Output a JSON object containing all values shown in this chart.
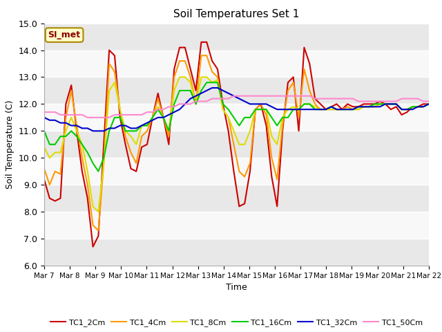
{
  "title": "Soil Temperatures Set 1",
  "xlabel": "Time",
  "ylabel": "Soil Temperature (C)",
  "ylim": [
    6.0,
    15.0
  ],
  "yticks": [
    6.0,
    7.0,
    8.0,
    9.0,
    10.0,
    11.0,
    12.0,
    13.0,
    14.0,
    15.0
  ],
  "annotation": "SI_met",
  "series_colors": [
    "#cc0000",
    "#ff9900",
    "#dddd00",
    "#00cc00",
    "#0000cc",
    "#ff88cc"
  ],
  "series_labels": [
    "TC1_2Cm",
    "TC1_4Cm",
    "TC1_8Cm",
    "TC1_16Cm",
    "TC1_32Cm",
    "TC1_50Cm"
  ],
  "plot_bg": "#f0f0f0",
  "band_light": "#e8e8e8",
  "band_dark": "#d8d8d8",
  "xtick_labels": [
    "Mar 7",
    "Mar 8",
    "Mar 9",
    "Mar 10",
    "Mar 11",
    "Mar 12",
    "Mar 13",
    "Mar 14",
    "Mar 15",
    "Mar 16",
    "Mar 17",
    "Mar 18",
    "Mar 19",
    "Mar 20",
    "Mar 21",
    "Mar 22"
  ],
  "TC1_2Cm": [
    9.2,
    8.5,
    8.4,
    8.5,
    12.0,
    12.7,
    11.0,
    9.5,
    8.5,
    6.7,
    7.1,
    10.5,
    14.0,
    13.8,
    11.5,
    10.5,
    9.6,
    9.5,
    10.4,
    10.5,
    11.5,
    12.4,
    11.5,
    10.5,
    13.3,
    14.1,
    14.1,
    13.3,
    12.5,
    14.3,
    14.3,
    13.6,
    13.3,
    12.0,
    11.0,
    9.5,
    8.2,
    8.3,
    9.5,
    11.8,
    12.0,
    11.2,
    9.3,
    8.2,
    11.0,
    12.8,
    13.0,
    11.0,
    14.1,
    13.5,
    12.2,
    12.0,
    11.8,
    11.9,
    12.0,
    11.8,
    12.0,
    11.9,
    11.9,
    12.0,
    12.0,
    12.0,
    12.1,
    12.0,
    11.8,
    11.9,
    11.6,
    11.7,
    11.9,
    11.9,
    12.0,
    12.0
  ],
  "TC1_4Cm": [
    9.6,
    9.0,
    9.5,
    9.4,
    11.5,
    12.5,
    11.2,
    10.0,
    9.0,
    7.5,
    7.3,
    9.8,
    13.5,
    13.2,
    11.8,
    10.8,
    10.2,
    9.8,
    10.8,
    11.0,
    11.5,
    12.2,
    11.5,
    10.8,
    13.0,
    13.6,
    13.6,
    13.0,
    12.0,
    13.8,
    13.8,
    13.2,
    13.0,
    11.8,
    11.5,
    10.5,
    9.5,
    9.3,
    9.8,
    11.8,
    12.0,
    11.6,
    10.0,
    9.2,
    11.2,
    12.5,
    12.8,
    11.5,
    13.3,
    12.5,
    12.0,
    11.8,
    11.8,
    11.8,
    11.8,
    11.8,
    11.9,
    11.8,
    11.8,
    11.9,
    11.9,
    11.9,
    12.0,
    12.0,
    12.0,
    12.0,
    11.8,
    11.8,
    11.9,
    11.9,
    11.9,
    12.0
  ],
  "TC1_8Cm": [
    10.4,
    10.0,
    10.2,
    10.2,
    11.0,
    11.5,
    11.0,
    10.5,
    9.5,
    8.2,
    8.0,
    9.8,
    12.5,
    12.8,
    11.8,
    11.0,
    10.8,
    10.5,
    11.2,
    11.2,
    11.5,
    11.9,
    11.5,
    11.0,
    12.5,
    13.0,
    13.0,
    12.8,
    12.0,
    13.0,
    13.0,
    12.8,
    12.9,
    11.8,
    11.5,
    11.0,
    10.5,
    10.5,
    11.0,
    11.8,
    11.8,
    11.8,
    10.8,
    10.5,
    11.5,
    11.8,
    11.9,
    11.8,
    12.0,
    12.0,
    11.9,
    11.8,
    11.8,
    11.8,
    11.8,
    11.8,
    11.8,
    11.8,
    11.8,
    11.9,
    11.9,
    11.9,
    12.0,
    12.0,
    12.0,
    12.0,
    11.8,
    11.8,
    11.9,
    11.9,
    11.9,
    12.0
  ],
  "TC1_16Cm": [
    11.0,
    10.5,
    10.5,
    10.8,
    10.8,
    11.0,
    10.8,
    10.5,
    10.2,
    9.8,
    9.5,
    10.0,
    11.0,
    11.5,
    11.5,
    11.0,
    11.0,
    11.0,
    11.2,
    11.2,
    11.5,
    11.8,
    11.5,
    11.0,
    12.0,
    12.5,
    12.5,
    12.5,
    12.0,
    12.5,
    12.8,
    12.8,
    12.8,
    12.0,
    11.8,
    11.5,
    11.2,
    11.5,
    11.5,
    11.8,
    11.8,
    11.8,
    11.5,
    11.2,
    11.5,
    11.5,
    11.8,
    11.8,
    12.0,
    12.0,
    11.8,
    11.8,
    11.8,
    11.9,
    11.8,
    11.8,
    11.8,
    11.8,
    11.9,
    11.9,
    11.9,
    12.0,
    12.0,
    12.0,
    12.0,
    12.0,
    11.8,
    11.8,
    11.9,
    11.9,
    11.9,
    12.0
  ],
  "TC1_32Cm": [
    11.5,
    11.4,
    11.4,
    11.3,
    11.3,
    11.2,
    11.2,
    11.1,
    11.1,
    11.0,
    11.0,
    11.0,
    11.1,
    11.1,
    11.2,
    11.2,
    11.1,
    11.1,
    11.2,
    11.3,
    11.4,
    11.5,
    11.5,
    11.6,
    11.7,
    11.8,
    12.0,
    12.2,
    12.3,
    12.4,
    12.5,
    12.6,
    12.6,
    12.5,
    12.4,
    12.3,
    12.2,
    12.1,
    12.0,
    12.0,
    12.0,
    12.0,
    11.9,
    11.8,
    11.8,
    11.8,
    11.8,
    11.8,
    11.8,
    11.8,
    11.8,
    11.8,
    11.8,
    11.9,
    11.8,
    11.8,
    11.8,
    11.8,
    11.9,
    11.9,
    11.9,
    11.9,
    11.9,
    12.0,
    12.0,
    12.0,
    11.8,
    11.8,
    11.8,
    11.9,
    11.9,
    12.0
  ],
  "TC1_50Cm": [
    11.7,
    11.7,
    11.7,
    11.6,
    11.6,
    11.6,
    11.6,
    11.6,
    11.5,
    11.5,
    11.5,
    11.5,
    11.5,
    11.6,
    11.6,
    11.6,
    11.6,
    11.6,
    11.6,
    11.7,
    11.7,
    11.8,
    11.8,
    11.9,
    11.9,
    12.0,
    12.0,
    12.0,
    12.1,
    12.1,
    12.1,
    12.2,
    12.2,
    12.2,
    12.2,
    12.3,
    12.3,
    12.3,
    12.3,
    12.3,
    12.3,
    12.3,
    12.3,
    12.3,
    12.3,
    12.3,
    12.3,
    12.3,
    12.3,
    12.3,
    12.2,
    12.2,
    12.2,
    12.2,
    12.2,
    12.2,
    12.2,
    12.2,
    12.1,
    12.1,
    12.1,
    12.1,
    12.1,
    12.1,
    12.1,
    12.1,
    12.2,
    12.2,
    12.2,
    12.2,
    12.1,
    12.1
  ]
}
